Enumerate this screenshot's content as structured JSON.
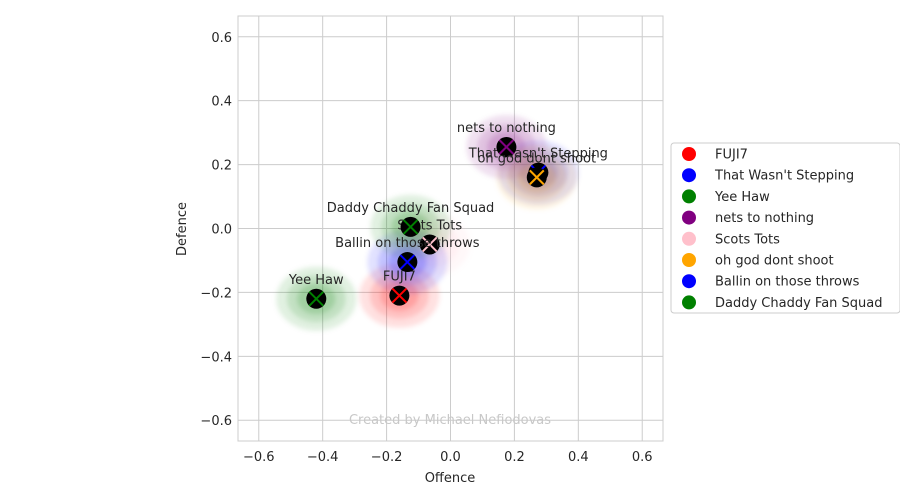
{
  "chart_data": {
    "type": "scatter",
    "xlabel": "Offence",
    "ylabel": "Defence",
    "xlim": [
      -0.665,
      0.665
    ],
    "ylim": [
      -0.665,
      0.665
    ],
    "xticks": [
      -0.6,
      -0.4,
      -0.2,
      0.0,
      0.2,
      0.4,
      0.6
    ],
    "yticks": [
      -0.6,
      -0.4,
      -0.2,
      0.0,
      0.2,
      0.4,
      0.6
    ],
    "xtick_labels": [
      "−0.6",
      "−0.4",
      "−0.2",
      "0.0",
      "0.2",
      "0.4",
      "0.6"
    ],
    "ytick_labels": [
      "−0.6",
      "−0.4",
      "−0.2",
      "0.0",
      "0.2",
      "0.4",
      "0.6"
    ],
    "grid": true,
    "legend_position": "right",
    "watermark": "Created by Michael Nefiodovas",
    "series": [
      {
        "name": "FUJI7",
        "color": "#ff0000",
        "x": -0.16,
        "y": -0.21,
        "label": "FUJI7"
      },
      {
        "name": "That Wasn't Stepping",
        "color": "#0000ff",
        "x": 0.275,
        "y": 0.175,
        "label": "That Wasn't Stepping"
      },
      {
        "name": "Yee Haw",
        "color": "#008000",
        "x": -0.42,
        "y": -0.22,
        "label": "Yee Haw"
      },
      {
        "name": "nets to nothing",
        "color": "#800080",
        "x": 0.175,
        "y": 0.255,
        "label": "nets to nothing"
      },
      {
        "name": "Scots Tots",
        "color": "#ffc0cb",
        "x": -0.065,
        "y": -0.05,
        "label": "Scots Tots"
      },
      {
        "name": "oh god dont shoot",
        "color": "#ffa500",
        "x": 0.27,
        "y": 0.16,
        "label": "oh god dont shoot"
      },
      {
        "name": "Ballin on those throws",
        "color": "#0000ff",
        "x": -0.135,
        "y": -0.105,
        "label": "Ballin on those throws"
      },
      {
        "name": "Daddy Chaddy Fan Squad",
        "color": "#008000",
        "x": -0.125,
        "y": 0.005,
        "label": "Daddy Chaddy Fan Squad"
      }
    ]
  }
}
